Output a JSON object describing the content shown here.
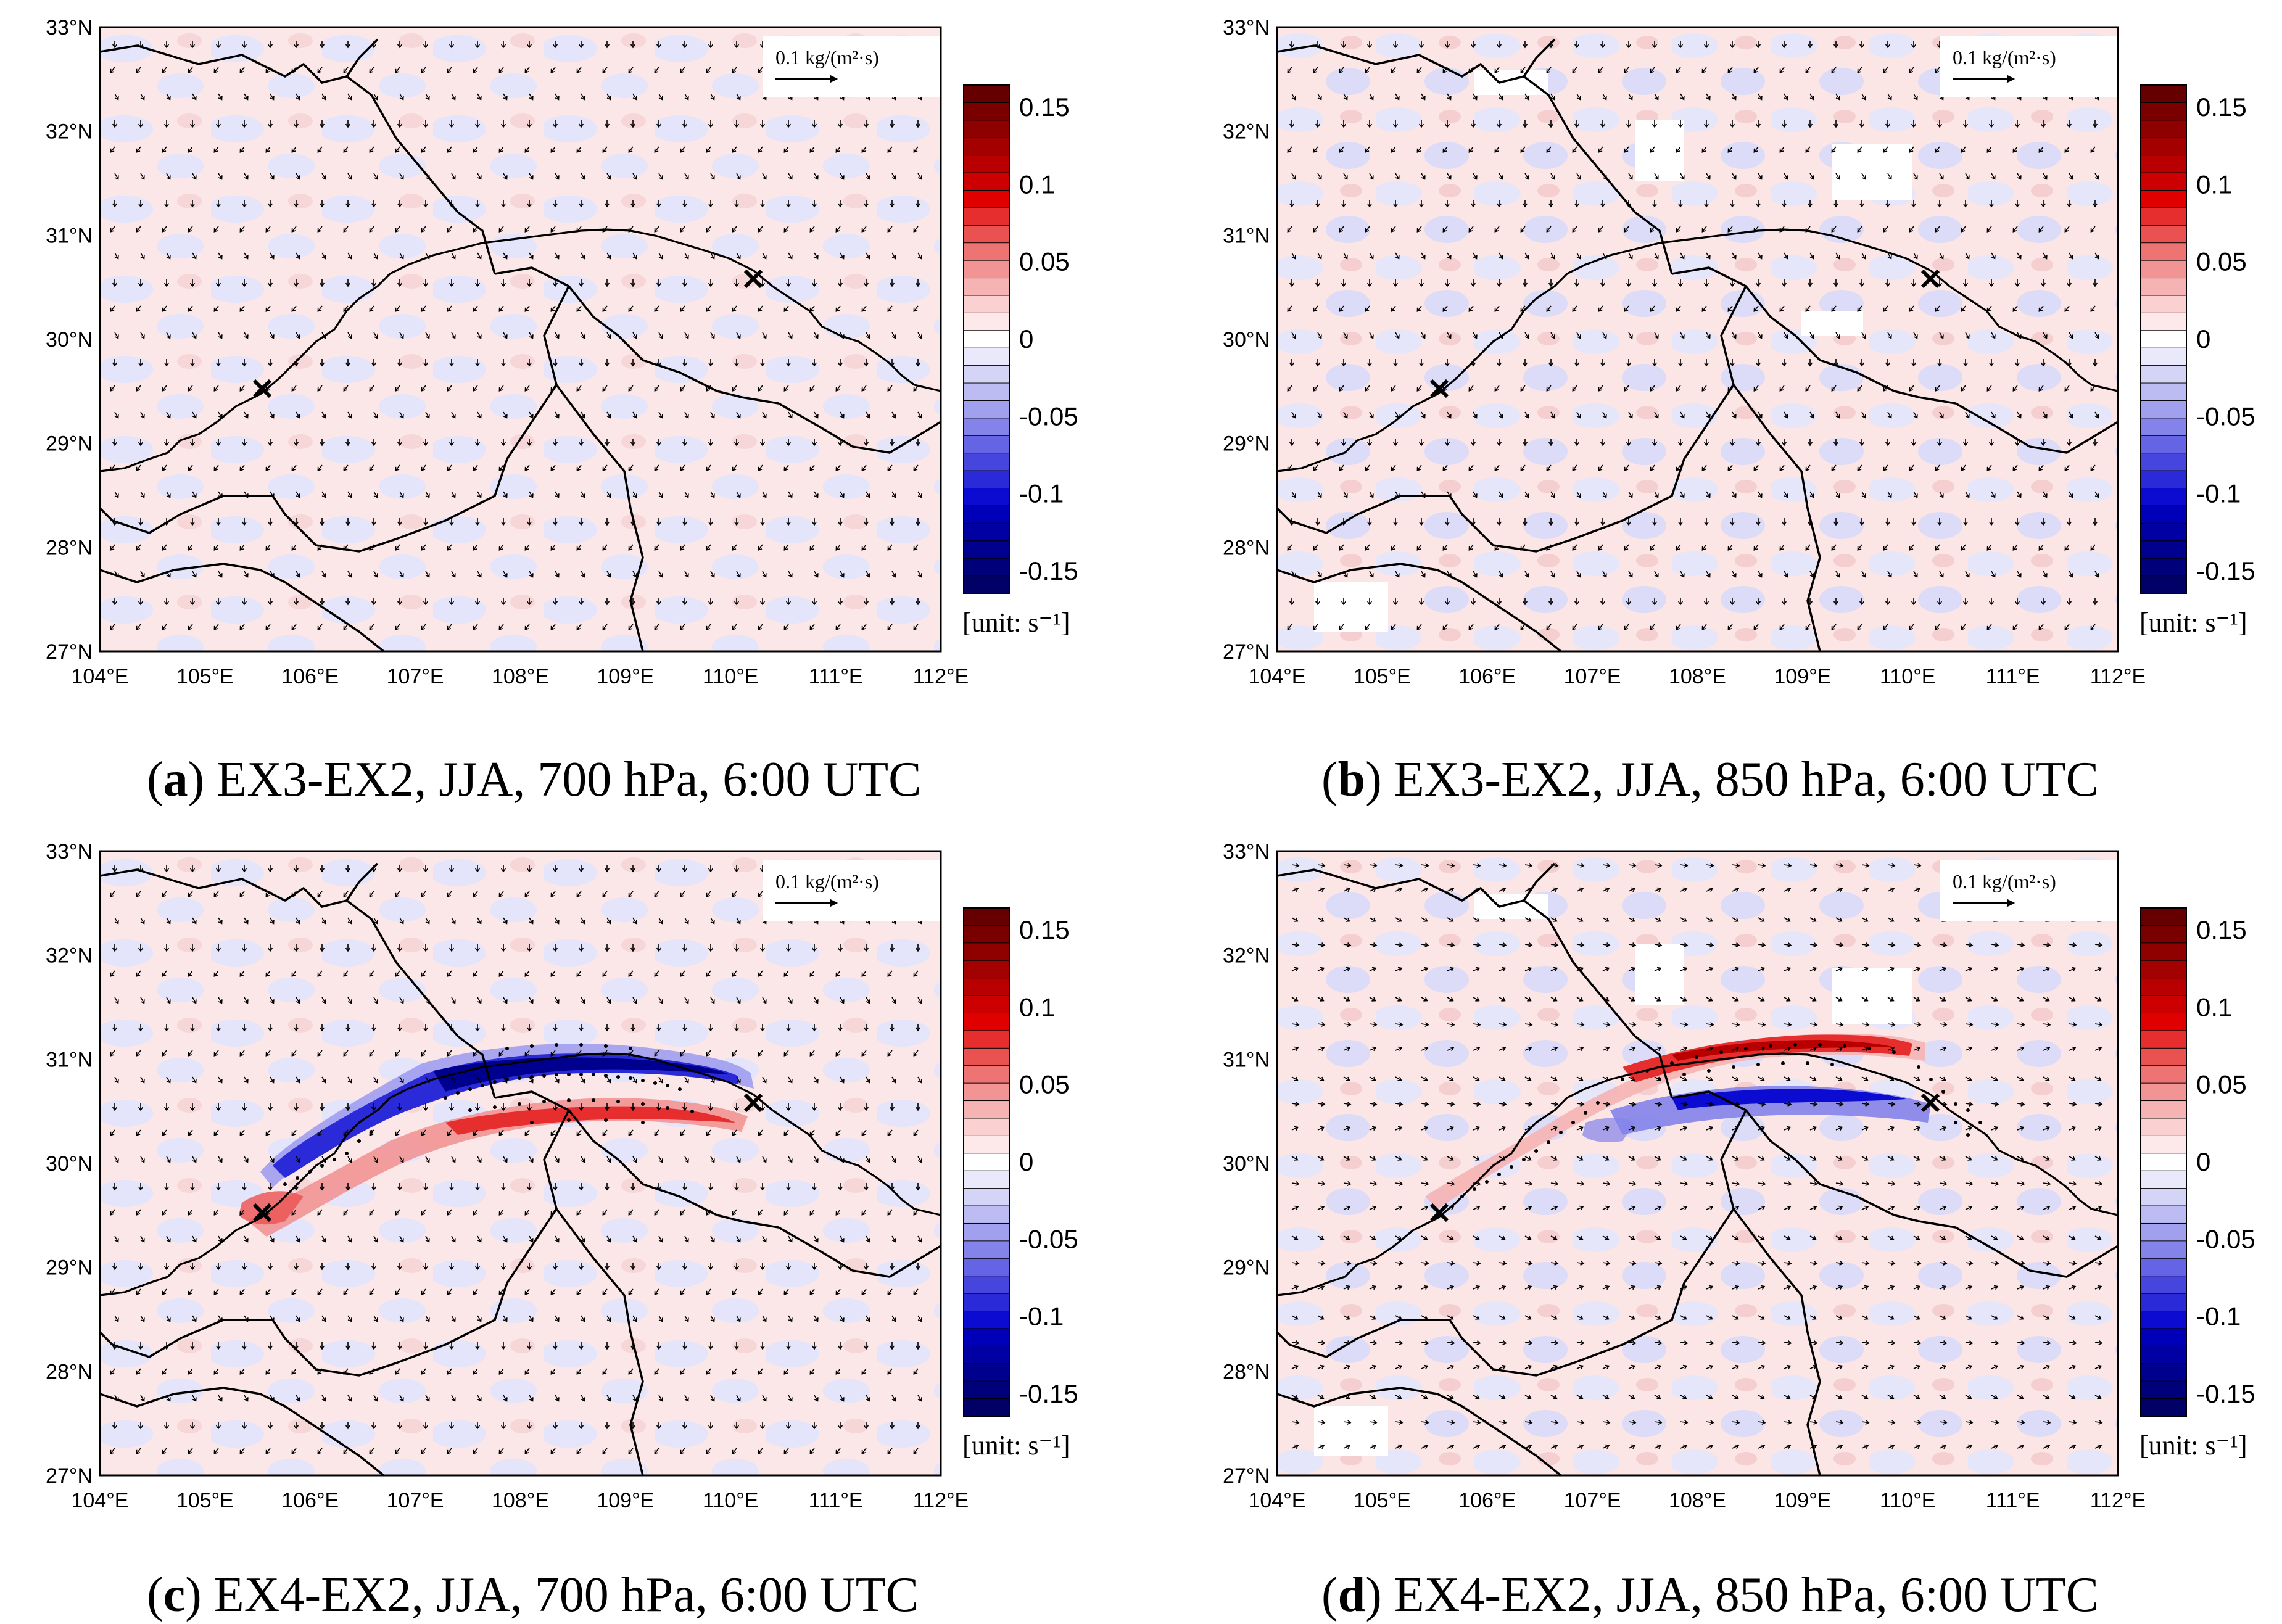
{
  "axes": {
    "lon_ticks": [
      "104°E",
      "105°E",
      "106°E",
      "107°E",
      "108°E",
      "109°E",
      "110°E",
      "111°E",
      "112°E"
    ],
    "lat_ticks": [
      "33°N",
      "32°N",
      "31°N",
      "30°N",
      "29°N",
      "28°N",
      "27°N"
    ],
    "lon_range": [
      104,
      112
    ],
    "lat_range": [
      27,
      33
    ]
  },
  "reference_vector": {
    "label": "0.1 kg/(m²·s)"
  },
  "colorbar": {
    "labels": [
      "0.15",
      "0.1",
      "0.05",
      "0",
      "-0.05",
      "-0.1",
      "-0.15"
    ],
    "unit_label": "[unit: s⁻¹]",
    "positive_colors": [
      "#fde9e9",
      "#fad0d0",
      "#f6b3b3",
      "#f29494",
      "#ee7373",
      "#ea5151",
      "#e62e2e",
      "#e00000",
      "#cc0000",
      "#b80000",
      "#a30000",
      "#8f0000",
      "#7a0000",
      "#660000"
    ],
    "negative_colors": [
      "#e9e9fb",
      "#d4d4f7",
      "#bcbcf3",
      "#a0a0ee",
      "#8383e9",
      "#6464e4",
      "#4646de",
      "#2a2ad8",
      "#0b0bd1",
      "#0000b8",
      "#0000a3",
      "#00008f",
      "#00007a",
      "#000066"
    ],
    "zero_color": "#ffffff"
  },
  "panels": [
    {
      "id": "a",
      "caption_letter": "a",
      "caption_text": "EX3-EX2, JJA, 700 hPa, 6:00 UTC",
      "scheme": "weak",
      "flow_dir": "south"
    },
    {
      "id": "b",
      "caption_letter": "b",
      "caption_text": "EX3-EX2, JJA, 850 hPa, 6:00 UTC",
      "scheme": "weak",
      "flow_dir": "south"
    },
    {
      "id": "c",
      "caption_letter": "c",
      "caption_text": "EX4-EX2, JJA, 700 hPa, 6:00 UTC",
      "scheme": "strong700",
      "flow_dir": "south"
    },
    {
      "id": "d",
      "caption_letter": "d",
      "caption_text": "EX4-EX2, JJA, 850 hPa, 6:00 UTC",
      "scheme": "strong850",
      "flow_dir": "east"
    }
  ],
  "markers": [
    {
      "name": "west-cross",
      "lon": 105.55,
      "lat": 29.52
    },
    {
      "name": "east-cross",
      "lon": 110.3,
      "lat": 30.7
    }
  ]
}
